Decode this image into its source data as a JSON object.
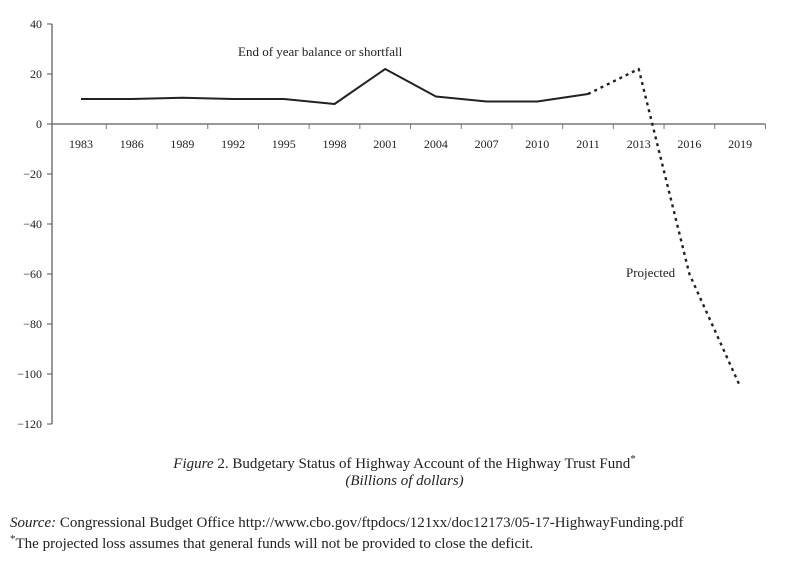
{
  "chart_data": {
    "type": "line",
    "title": "",
    "xlabel": "",
    "ylabel": "",
    "categories": [
      "1983",
      "1986",
      "1989",
      "1992",
      "1995",
      "1998",
      "2001",
      "2004",
      "2007",
      "2010",
      "2011",
      "2013",
      "2016",
      "2019"
    ],
    "series": [
      {
        "style": "solid",
        "x": [
          "1983",
          "1986",
          "1989",
          "1992",
          "1995",
          "1998",
          "2001",
          "2004",
          "2007",
          "2010",
          "2011"
        ],
        "values": [
          10,
          10,
          10.5,
          10,
          10,
          8,
          22,
          11,
          9,
          9,
          12
        ]
      },
      {
        "style": "dotted",
        "x": [
          "2011",
          "2013",
          "2016",
          "2019"
        ],
        "values": [
          12,
          22,
          -60,
          -105
        ]
      }
    ],
    "ylim": [
      -120,
      40
    ],
    "yticks": [
      40,
      20,
      0,
      -20,
      -40,
      -60,
      -80,
      -100,
      -120
    ],
    "ytick_labels": [
      "40",
      "20",
      "0",
      "−20",
      "−40",
      "−60",
      "−80",
      "−100",
      "−120"
    ],
    "grid": false,
    "annotations": {
      "solid": "End of year balance or shortfall",
      "projected": "Projected"
    },
    "line_color": "#222222"
  },
  "caption": {
    "figure_label": "Figure",
    "figure_text": " 2. Budgetary Status of Highway Account of the Highway Trust Fund",
    "figure_mark": "*",
    "units": "(Billions of dollars)"
  },
  "footer": {
    "source_label": "Source:",
    "source_text": " Congressional Budget Office http://www.cbo.gov/ftpdocs/121xx/doc12173/05-17-HighwayFunding.pdf",
    "note_mark": "*",
    "note_text": "The projected loss assumes that general funds will not be provided to close the deficit."
  }
}
